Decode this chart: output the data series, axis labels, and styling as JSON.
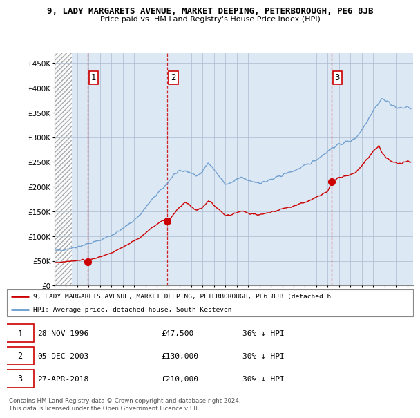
{
  "title": "9, LADY MARGARETS AVENUE, MARKET DEEPING, PETERBOROUGH, PE6 8JB",
  "subtitle": "Price paid vs. HM Land Registry's House Price Index (HPI)",
  "ylabel_ticks": [
    "£0",
    "£50K",
    "£100K",
    "£150K",
    "£200K",
    "£250K",
    "£300K",
    "£350K",
    "£400K",
    "£450K"
  ],
  "ytick_values": [
    0,
    50000,
    100000,
    150000,
    200000,
    250000,
    300000,
    350000,
    400000,
    450000
  ],
  "ylim": [
    0,
    470000
  ],
  "xlim_start": 1994.0,
  "xlim_end": 2025.5,
  "sales": [
    {
      "date": 1996.91,
      "price": 47500,
      "label": "1"
    },
    {
      "date": 2003.92,
      "price": 130000,
      "label": "2"
    },
    {
      "date": 2018.32,
      "price": 210000,
      "label": "3"
    }
  ],
  "sale_color": "#cc0000",
  "hpi_color": "#6699cc",
  "plot_bg_color": "#dde8f5",
  "hatch_region_end": 1995.5,
  "legend_sale_label": "9, LADY MARGARETS AVENUE, MARKET DEEPING, PETERBOROUGH, PE6 8JB (detached h",
  "legend_hpi_label": "HPI: Average price, detached house, South Kesteven",
  "table_rows": [
    {
      "num": "1",
      "date": "28-NOV-1996",
      "price": "£47,500",
      "hpi": "36% ↓ HPI"
    },
    {
      "num": "2",
      "date": "05-DEC-2003",
      "price": "£130,000",
      "hpi": "30% ↓ HPI"
    },
    {
      "num": "3",
      "date": "27-APR-2018",
      "price": "£210,000",
      "hpi": "30% ↓ HPI"
    }
  ],
  "footer": "Contains HM Land Registry data © Crown copyright and database right 2024.\nThis data is licensed under the Open Government Licence v3.0.",
  "grid_color": "#aabbcc",
  "hpi_keypoints": [
    [
      1994.0,
      70000
    ],
    [
      1994.5,
      72000
    ],
    [
      1995.0,
      74000
    ],
    [
      1995.5,
      76000
    ],
    [
      1996.0,
      79000
    ],
    [
      1996.5,
      82000
    ],
    [
      1997.0,
      85000
    ],
    [
      1997.5,
      88000
    ],
    [
      1998.0,
      92000
    ],
    [
      1998.5,
      97000
    ],
    [
      1999.0,
      102000
    ],
    [
      1999.5,
      108000
    ],
    [
      2000.0,
      115000
    ],
    [
      2000.5,
      124000
    ],
    [
      2001.0,
      133000
    ],
    [
      2001.5,
      143000
    ],
    [
      2002.0,
      158000
    ],
    [
      2002.5,
      172000
    ],
    [
      2003.0,
      185000
    ],
    [
      2003.5,
      196000
    ],
    [
      2004.0,
      210000
    ],
    [
      2004.5,
      225000
    ],
    [
      2005.0,
      230000
    ],
    [
      2005.5,
      232000
    ],
    [
      2006.0,
      228000
    ],
    [
      2006.5,
      222000
    ],
    [
      2007.0,
      230000
    ],
    [
      2007.25,
      240000
    ],
    [
      2007.5,
      248000
    ],
    [
      2007.75,
      245000
    ],
    [
      2008.0,
      235000
    ],
    [
      2008.5,
      220000
    ],
    [
      2009.0,
      205000
    ],
    [
      2009.5,
      207000
    ],
    [
      2010.0,
      215000
    ],
    [
      2010.5,
      218000
    ],
    [
      2011.0,
      212000
    ],
    [
      2011.5,
      210000
    ],
    [
      2012.0,
      208000
    ],
    [
      2012.5,
      210000
    ],
    [
      2013.0,
      214000
    ],
    [
      2013.5,
      218000
    ],
    [
      2014.0,
      224000
    ],
    [
      2014.5,
      228000
    ],
    [
      2015.0,
      232000
    ],
    [
      2015.5,
      237000
    ],
    [
      2016.0,
      242000
    ],
    [
      2016.5,
      248000
    ],
    [
      2017.0,
      255000
    ],
    [
      2017.5,
      263000
    ],
    [
      2018.0,
      272000
    ],
    [
      2018.5,
      280000
    ],
    [
      2019.0,
      285000
    ],
    [
      2019.5,
      290000
    ],
    [
      2020.0,
      292000
    ],
    [
      2020.5,
      300000
    ],
    [
      2021.0,
      315000
    ],
    [
      2021.5,
      335000
    ],
    [
      2022.0,
      355000
    ],
    [
      2022.5,
      370000
    ],
    [
      2022.75,
      378000
    ],
    [
      2023.0,
      375000
    ],
    [
      2023.25,
      372000
    ],
    [
      2023.5,
      368000
    ],
    [
      2023.75,
      365000
    ],
    [
      2024.0,
      360000
    ],
    [
      2024.5,
      358000
    ],
    [
      2025.0,
      362000
    ],
    [
      2025.3,
      358000
    ]
  ],
  "sale_hpi_keypoints_seg1": [
    [
      1994.0,
      46000
    ],
    [
      1994.5,
      47000
    ],
    [
      1995.0,
      48000
    ],
    [
      1995.5,
      49500
    ],
    [
      1996.0,
      51000
    ],
    [
      1996.5,
      52500
    ],
    [
      1996.91,
      47500
    ],
    [
      1997.0,
      52000
    ],
    [
      1997.5,
      55000
    ],
    [
      1998.0,
      58000
    ],
    [
      1998.5,
      62000
    ],
    [
      1999.0,
      66000
    ],
    [
      1999.5,
      72000
    ],
    [
      2000.0,
      78000
    ],
    [
      2000.5,
      84000
    ],
    [
      2001.0,
      91000
    ],
    [
      2001.5,
      97000
    ],
    [
      2002.0,
      106000
    ],
    [
      2002.5,
      116000
    ],
    [
      2003.0,
      124000
    ],
    [
      2003.5,
      132000
    ],
    [
      2003.92,
      130000
    ]
  ],
  "sale_hpi_keypoints_seg2": [
    [
      2003.92,
      130000
    ],
    [
      2004.0,
      131000
    ],
    [
      2004.25,
      138000
    ],
    [
      2004.5,
      145000
    ],
    [
      2004.75,
      152000
    ],
    [
      2005.0,
      158000
    ],
    [
      2005.25,
      165000
    ],
    [
      2005.5,
      168000
    ],
    [
      2005.75,
      165000
    ],
    [
      2006.0,
      160000
    ],
    [
      2006.25,
      155000
    ],
    [
      2006.5,
      152000
    ],
    [
      2006.75,
      155000
    ],
    [
      2007.0,
      158000
    ],
    [
      2007.25,
      163000
    ],
    [
      2007.5,
      170000
    ],
    [
      2007.75,
      168000
    ],
    [
      2008.0,
      162000
    ],
    [
      2008.5,
      152000
    ],
    [
      2009.0,
      142000
    ],
    [
      2009.5,
      143000
    ],
    [
      2010.0,
      148000
    ],
    [
      2010.5,
      150000
    ],
    [
      2011.0,
      147000
    ],
    [
      2011.5,
      145000
    ],
    [
      2012.0,
      143000
    ],
    [
      2012.5,
      145000
    ],
    [
      2013.0,
      148000
    ],
    [
      2013.5,
      151000
    ],
    [
      2014.0,
      155000
    ],
    [
      2014.5,
      158000
    ],
    [
      2015.0,
      161000
    ],
    [
      2015.5,
      165000
    ],
    [
      2016.0,
      168000
    ],
    [
      2016.5,
      173000
    ],
    [
      2017.0,
      178000
    ],
    [
      2017.5,
      184000
    ],
    [
      2018.0,
      190000
    ],
    [
      2018.32,
      210000
    ]
  ],
  "sale_hpi_keypoints_seg3": [
    [
      2018.32,
      210000
    ],
    [
      2018.5,
      212000
    ],
    [
      2019.0,
      218000
    ],
    [
      2019.5,
      222000
    ],
    [
      2020.0,
      224000
    ],
    [
      2020.5,
      230000
    ],
    [
      2021.0,
      242000
    ],
    [
      2021.5,
      257000
    ],
    [
      2022.0,
      272000
    ],
    [
      2022.5,
      283000
    ],
    [
      2022.75,
      268000
    ],
    [
      2023.0,
      263000
    ],
    [
      2023.25,
      257000
    ],
    [
      2023.5,
      252000
    ],
    [
      2023.75,
      250000
    ],
    [
      2024.0,
      248000
    ],
    [
      2024.5,
      247000
    ],
    [
      2025.0,
      252000
    ],
    [
      2025.3,
      250000
    ]
  ]
}
